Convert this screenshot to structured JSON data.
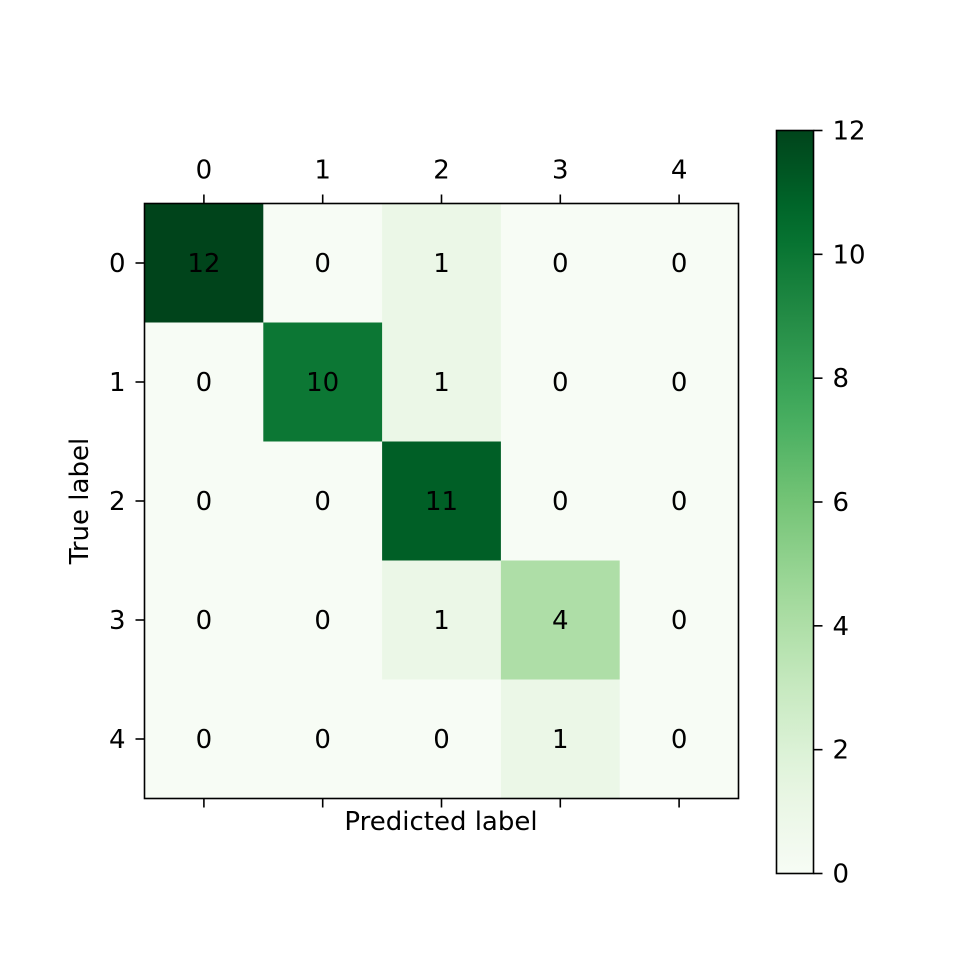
{
  "chart_data": {
    "type": "heatmap",
    "title": "",
    "xlabel": "Predicted label",
    "ylabel": "True label",
    "x_categories": [
      "0",
      "1",
      "2",
      "3",
      "4"
    ],
    "y_categories": [
      "0",
      "1",
      "2",
      "3",
      "4"
    ],
    "matrix": [
      [
        12,
        0,
        1,
        0,
        0
      ],
      [
        0,
        10,
        1,
        0,
        0
      ],
      [
        0,
        0,
        11,
        0,
        0
      ],
      [
        0,
        0,
        1,
        4,
        0
      ],
      [
        0,
        0,
        0,
        1,
        0
      ]
    ],
    "colormap": "Greens",
    "colorbar": {
      "range": [
        0,
        12
      ],
      "ticks": [
        "0",
        "2",
        "4",
        "6",
        "8",
        "10",
        "12"
      ]
    },
    "x_tick_position": "top",
    "grid": false
  }
}
